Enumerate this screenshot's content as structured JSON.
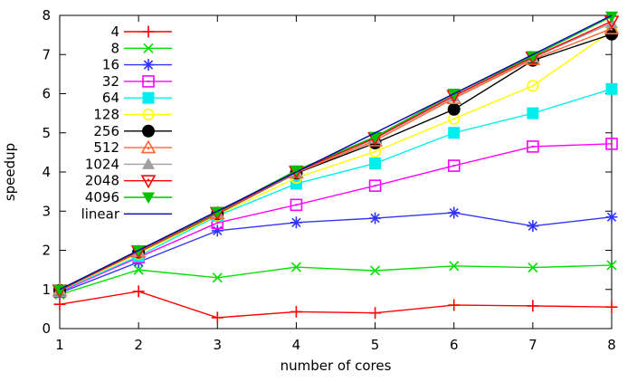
{
  "figure": {
    "background": "#ffffff",
    "axis_color": "#000000"
  },
  "chart_data": {
    "type": "line",
    "title": "",
    "xlabel": "number of cores",
    "ylabel": "speedup",
    "xlim": [
      1,
      8
    ],
    "ylim": [
      0,
      8
    ],
    "xticks": [
      1,
      2,
      3,
      4,
      5,
      6,
      7,
      8
    ],
    "yticks": [
      0,
      1,
      2,
      3,
      4,
      5,
      6,
      7,
      8
    ],
    "grid": false,
    "legend_position": "top-left",
    "x": [
      1,
      2,
      3,
      4,
      5,
      6,
      7,
      8
    ],
    "series": [
      {
        "name": "4",
        "color": "#ff0000",
        "marker": "plus",
        "values": [
          0.62,
          0.95,
          0.28,
          0.43,
          0.4,
          0.6,
          0.58,
          0.55
        ]
      },
      {
        "name": "8",
        "color": "#00e000",
        "marker": "x",
        "values": [
          0.87,
          1.5,
          1.3,
          1.57,
          1.48,
          1.6,
          1.56,
          1.62
        ]
      },
      {
        "name": "16",
        "color": "#3333ff",
        "marker": "asterisk",
        "values": [
          0.91,
          1.7,
          2.5,
          2.71,
          2.82,
          2.96,
          2.62,
          2.85
        ]
      },
      {
        "name": "32",
        "color": "#ff00ff",
        "marker": "square-open",
        "values": [
          0.94,
          1.82,
          2.7,
          3.16,
          3.65,
          4.16,
          4.65,
          4.72
        ]
      },
      {
        "name": "64",
        "color": "#00eeee",
        "marker": "square-filled",
        "values": [
          0.96,
          1.85,
          2.88,
          3.7,
          4.22,
          5.0,
          5.5,
          6.12
        ]
      },
      {
        "name": "128",
        "color": "#ffff00",
        "marker": "circle-open",
        "values": [
          0.97,
          1.92,
          2.9,
          3.85,
          4.52,
          5.36,
          6.2,
          7.6
        ]
      },
      {
        "name": "256",
        "color": "#000000",
        "marker": "circle-filled",
        "values": [
          0.98,
          1.95,
          2.93,
          3.97,
          4.74,
          5.6,
          6.85,
          7.52
        ]
      },
      {
        "name": "512",
        "color": "#ff6633",
        "marker": "triangle-up-open",
        "values": [
          0.97,
          1.96,
          2.94,
          3.98,
          4.8,
          5.88,
          6.88,
          7.66
        ]
      },
      {
        "name": "1024",
        "color": "#a0a0a0",
        "marker": "triangle-up-filled",
        "values": [
          0.99,
          1.97,
          2.95,
          4.0,
          4.85,
          5.92,
          6.92,
          7.8
        ]
      },
      {
        "name": "2048",
        "color": "#ff0000",
        "marker": "triangle-down-open",
        "values": [
          0.98,
          1.98,
          2.96,
          4.01,
          4.87,
          5.95,
          6.93,
          7.85
        ]
      },
      {
        "name": "4096",
        "color": "#00c000",
        "marker": "triangle-down-filled",
        "values": [
          0.99,
          2.0,
          2.98,
          4.04,
          4.9,
          6.0,
          6.96,
          7.97
        ]
      },
      {
        "name": "linear",
        "color": "#0000b0",
        "marker": "none",
        "values": [
          1,
          2,
          3,
          4,
          5,
          6,
          7,
          8
        ]
      }
    ]
  }
}
